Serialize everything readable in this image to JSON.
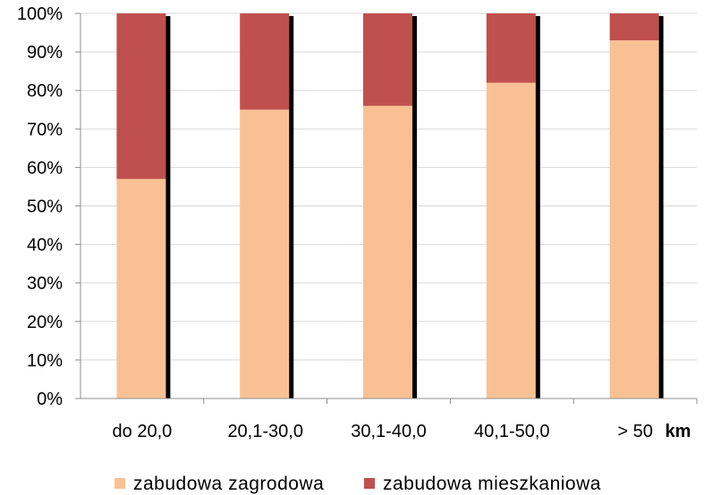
{
  "chart_data": {
    "type": "bar",
    "stacked": true,
    "categories": [
      "do 20,0",
      "20,1-30,0",
      "30,1-40,0",
      "40,1-50,0",
      "> 50"
    ],
    "x_unit": "km",
    "series": [
      {
        "name": "zabudowa zagrodowa",
        "values": [
          57,
          75,
          76,
          82,
          93
        ],
        "color": "#f9c193"
      },
      {
        "name": "zabudowa mieszkaniowa",
        "values": [
          43,
          25,
          24,
          18,
          7
        ],
        "color": "#c0504d"
      }
    ],
    "ylim": [
      0,
      100
    ],
    "yticks": [
      "0%",
      "10%",
      "20%",
      "30%",
      "40%",
      "50%",
      "60%",
      "70%",
      "80%",
      "90%",
      "100%"
    ],
    "grid": true,
    "legend_position": "bottom"
  }
}
